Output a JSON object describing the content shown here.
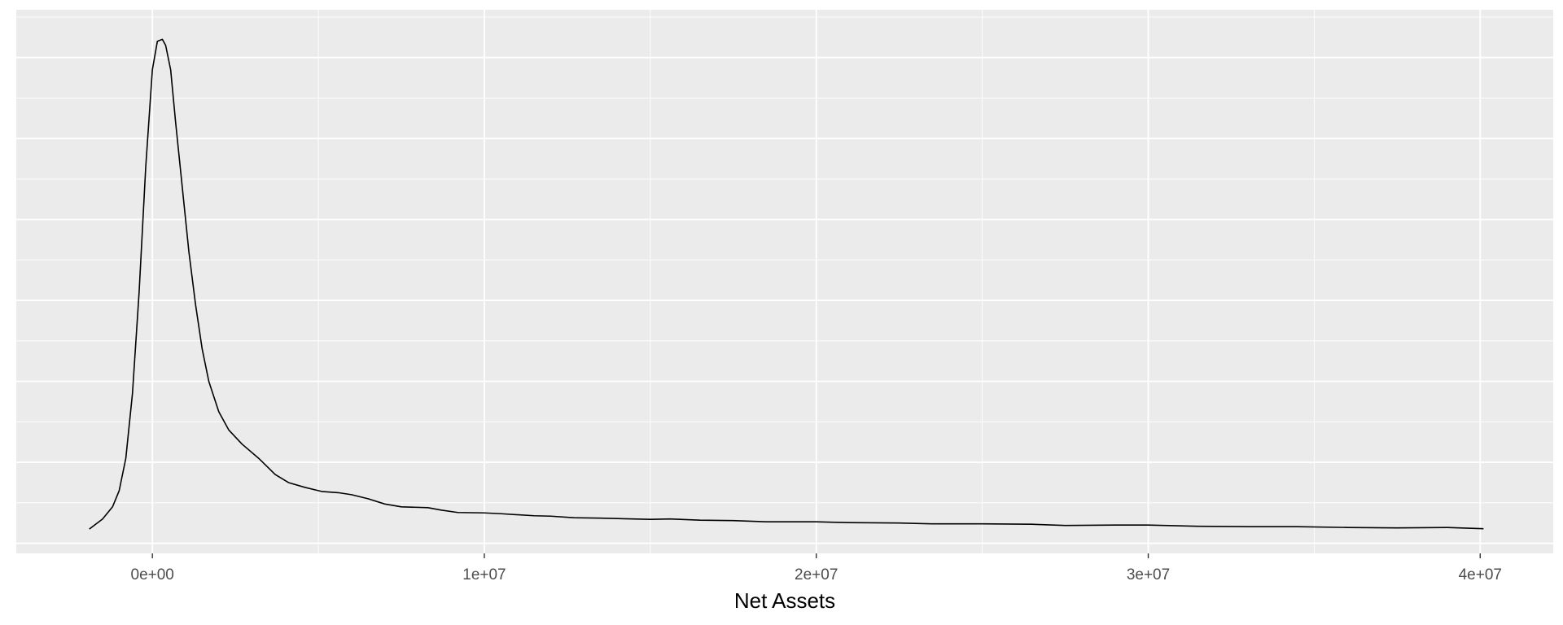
{
  "chart_data": {
    "type": "line",
    "title": "",
    "xlabel": "Net Assets",
    "ylabel": "",
    "xlim": [
      -4100000,
      42200000
    ],
    "ylim": [
      -2.5e-09,
      1.318e-07
    ],
    "x_ticks": [
      0,
      10000000,
      20000000,
      30000000,
      40000000
    ],
    "x_tick_labels": [
      "0e+00",
      "1e+07",
      "2e+07",
      "3e+07",
      "4e+07"
    ],
    "y_ticks": [
      0.0,
      2e-08,
      4e-08,
      6e-08,
      8e-08,
      1e-07,
      1.2e-07
    ],
    "y_tick_labels_visible": false,
    "grid": true,
    "legend": "none",
    "colors": {
      "panel_background": "#EBEBEB",
      "grid_major": "#FFFFFF",
      "line": "#000000",
      "tick_text": "#4D4D4D",
      "axis_title": "#000000"
    },
    "series": [
      {
        "x": [
          -1900000,
          -1500000,
          -1200000,
          -1000000,
          -800000,
          -600000,
          -400000,
          -200000,
          0,
          150000,
          300000,
          400000,
          550000,
          700000,
          900000,
          1100000,
          1300000,
          1500000,
          1700000,
          2000000,
          2300000,
          2700000,
          3200000,
          3700000,
          4100000,
          4600000,
          5100000,
          5600000,
          6000000,
          6500000,
          7000000,
          7500000,
          8300000,
          8700000,
          9200000,
          10000000,
          10500000,
          11500000,
          12000000,
          12700000,
          13500000,
          14000000,
          15000000,
          15600000,
          16500000,
          17500000,
          18500000,
          20000000,
          21000000,
          22500000,
          23500000,
          25000000,
          26500000,
          27500000,
          29000000,
          30000000,
          31500000,
          33000000,
          34500000,
          36000000,
          37500000,
          39000000,
          40100000
        ],
        "y": [
          3.5e-09,
          6e-09,
          9e-09,
          1.3e-08,
          2.1e-08,
          3.7e-08,
          6.2e-08,
          9.3e-08,
          1.17e-07,
          1.24e-07,
          1.245e-07,
          1.23e-07,
          1.17e-07,
          1.04e-07,
          8.8e-08,
          7.2e-08,
          5.9e-08,
          4.8e-08,
          4e-08,
          3.25e-08,
          2.8e-08,
          2.45e-08,
          2.1e-08,
          1.7e-08,
          1.5e-08,
          1.38e-08,
          1.28e-08,
          1.25e-08,
          1.2e-08,
          1.1e-08,
          9.7e-09,
          9e-09,
          8.8e-09,
          8.2e-09,
          7.6e-09,
          7.5e-09,
          7.3e-09,
          6.8e-09,
          6.7e-09,
          6.3e-09,
          6.2e-09,
          6.1e-09,
          5.9e-09,
          6e-09,
          5.7e-09,
          5.6e-09,
          5.3e-09,
          5.3e-09,
          5.1e-09,
          5e-09,
          4.8e-09,
          4.8e-09,
          4.7e-09,
          4.4e-09,
          4.5e-09,
          4.5e-09,
          4.2e-09,
          4.1e-09,
          4.1e-09,
          3.9e-09,
          3.8e-09,
          3.9e-09,
          3.6e-09
        ]
      }
    ]
  }
}
